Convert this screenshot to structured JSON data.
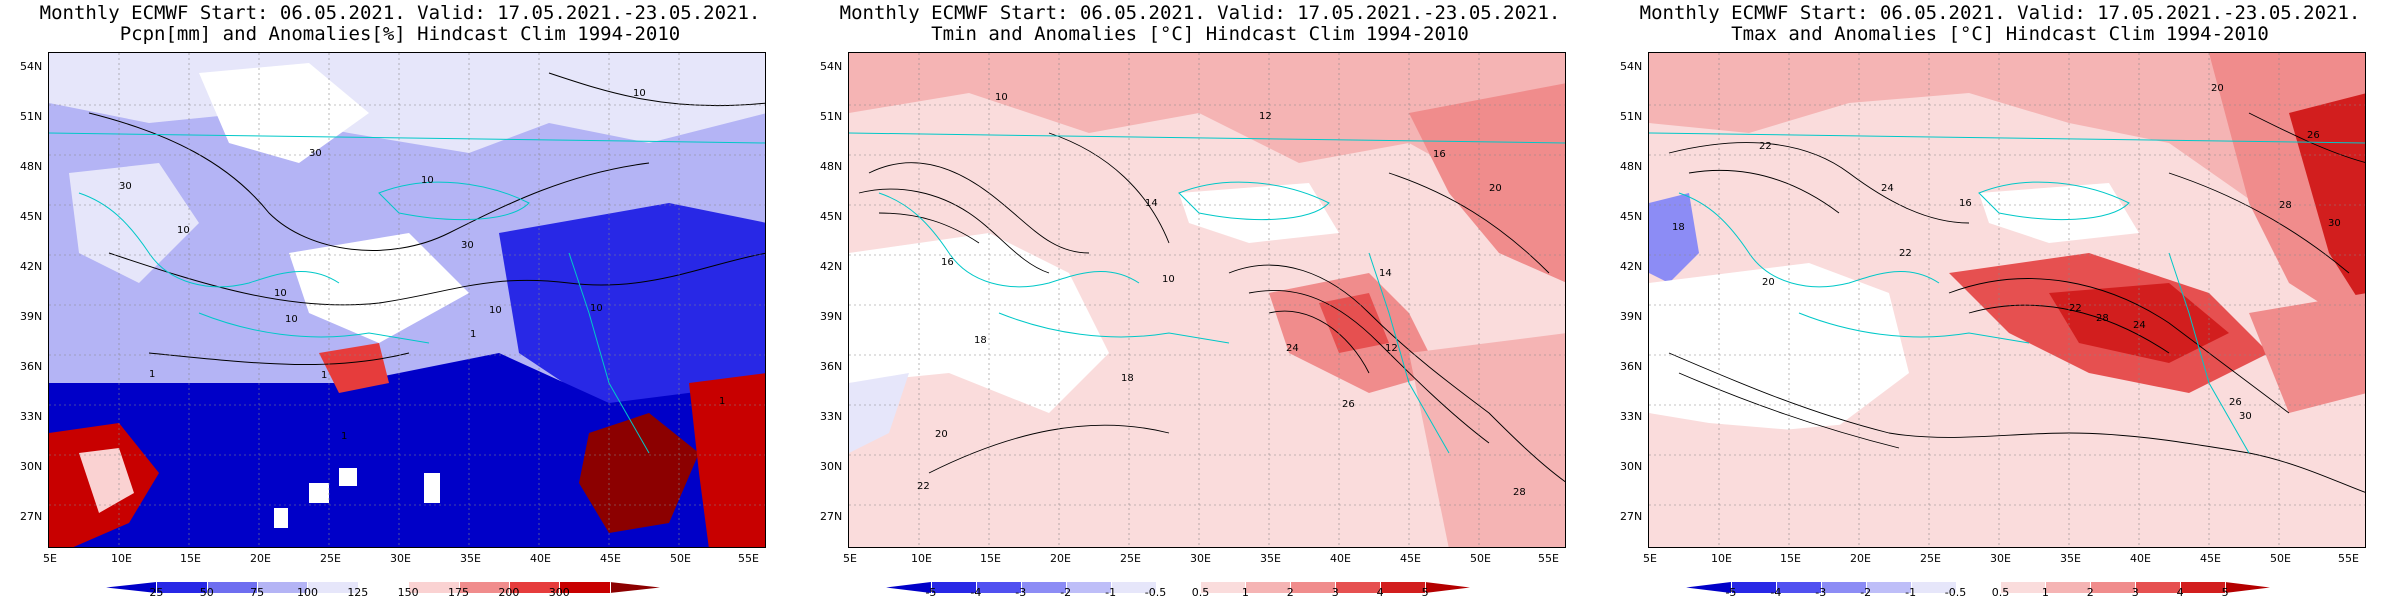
{
  "panels": [
    {
      "id": "pcpn",
      "title_line1": "Monthly ECMWF Start: 06.05.2021. Valid: 17.05.2021.-23.05.2021.",
      "title_line2": "Pcpn[mm] and Anomalies[%] Hindcast Clim 1994-2010",
      "colorbar_labels": [
        "25",
        "50",
        "75",
        "100",
        "125",
        "150",
        "175",
        "200",
        "300"
      ],
      "colorbar_colors": [
        "#0000c8",
        "#2828e6",
        "#6e6ef0",
        "#b4b4f5",
        "#e6e6fa",
        "#ffffff",
        "#fad2d2",
        "#f08c8c",
        "#e63c3c",
        "#c80000",
        "#8c0000"
      ]
    },
    {
      "id": "tmin",
      "title_line1": "Monthly ECMWF Start: 06.05.2021. Valid: 17.05.2021.-23.05.2021.",
      "title_line2": "Tmin and Anomalies [°C] Hindcast Clim 1994-2010",
      "colorbar_labels": [
        "-5",
        "-4",
        "-3",
        "-2",
        "-1",
        "-0.5",
        "0.5",
        "1",
        "2",
        "3",
        "4",
        "5"
      ],
      "colorbar_colors": [
        "#0000c8",
        "#2828e6",
        "#5050f0",
        "#8c8cf5",
        "#bebef8",
        "#e6e6fa",
        "#ffffff",
        "#fadcdc",
        "#f5b4b4",
        "#f08c8c",
        "#e65050",
        "#d21e1e",
        "#b40000"
      ]
    },
    {
      "id": "tmax",
      "title_line1": "Monthly ECMWF Start: 06.05.2021. Valid: 17.05.2021.-23.05.2021.",
      "title_line2": "Tmax and Anomalies [°C] Hindcast Clim 1994-2010",
      "colorbar_labels": [
        "-5",
        "-4",
        "-3",
        "-2",
        "-1",
        "-0.5",
        "0.5",
        "1",
        "2",
        "3",
        "4",
        "5"
      ],
      "colorbar_colors": [
        "#0000c8",
        "#2828e6",
        "#5050f0",
        "#8c8cf5",
        "#bebef8",
        "#e6e6fa",
        "#ffffff",
        "#fadcdc",
        "#f5b4b4",
        "#f08c8c",
        "#e65050",
        "#d21e1e",
        "#b40000"
      ]
    }
  ],
  "lat_labels": [
    "54N",
    "51N",
    "48N",
    "45N",
    "42N",
    "39N",
    "36N",
    "33N",
    "30N",
    "27N"
  ],
  "lon_labels": [
    "5E",
    "10E",
    "15E",
    "20E",
    "25E",
    "30E",
    "35E",
    "40E",
    "45E",
    "50E",
    "55E"
  ],
  "contour_labels": {
    "pcpn": [
      "10",
      "30",
      "10",
      "10",
      "30",
      "10",
      "10",
      "1",
      "1",
      "1",
      "1",
      "1",
      "10",
      "30",
      "10"
    ],
    "tmin": [
      "10",
      "12",
      "14",
      "16",
      "18",
      "20",
      "22",
      "24",
      "26",
      "28",
      "12",
      "14",
      "10",
      "18",
      "20",
      "16"
    ],
    "tmax": [
      "20",
      "22",
      "24",
      "26",
      "28",
      "30",
      "18",
      "16",
      "22",
      "24",
      "26",
      "28",
      "30",
      "20",
      "22"
    ]
  }
}
